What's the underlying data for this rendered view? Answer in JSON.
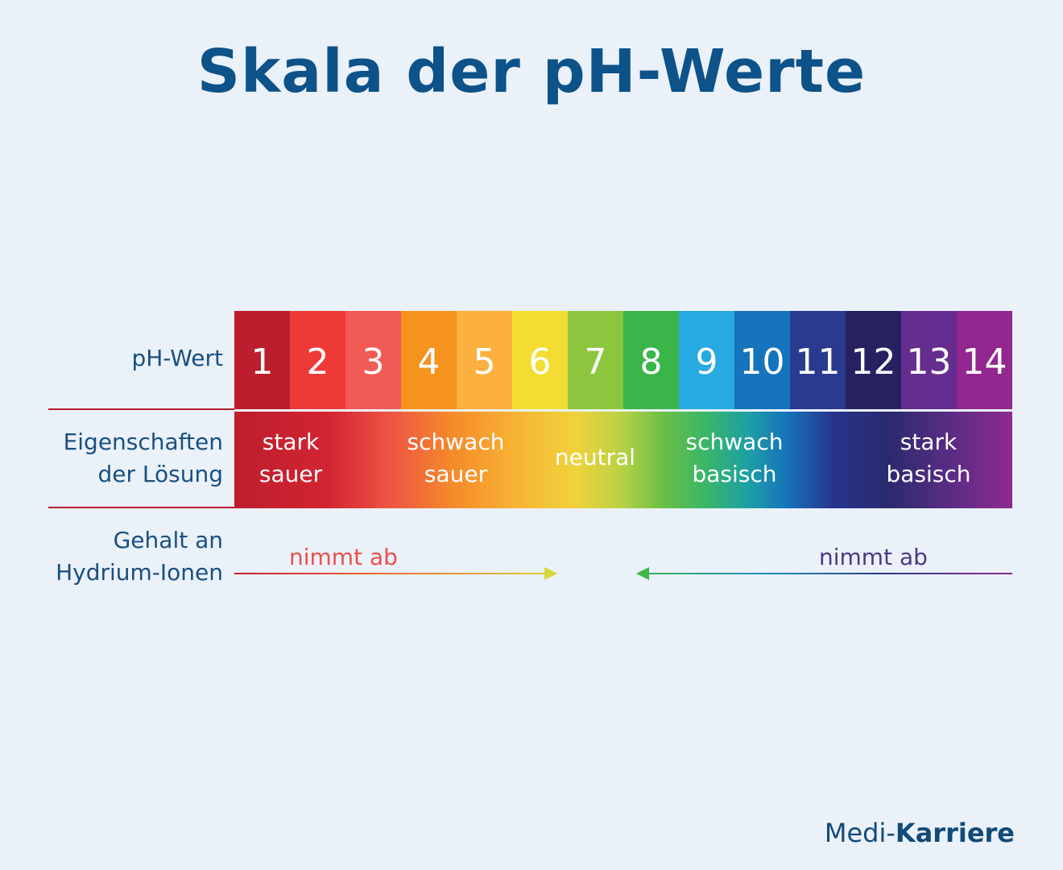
{
  "title": "Skala der pH-Werte",
  "labels": {
    "ph_row": "pH-Wert",
    "properties_line1": "Eigenschaften",
    "properties_line2": "der Lösung",
    "ions_line1": "Gehalt an",
    "ions_line2": "Hydrium-Ionen"
  },
  "scale": [
    {
      "value": "1",
      "color": "#bd1e2d"
    },
    {
      "value": "2",
      "color": "#ee3a37"
    },
    {
      "value": "3",
      "color": "#f15a55"
    },
    {
      "value": "4",
      "color": "#f6921e"
    },
    {
      "value": "5",
      "color": "#fbb040"
    },
    {
      "value": "6",
      "color": "#f4dd33"
    },
    {
      "value": "7",
      "color": "#8cc63f"
    },
    {
      "value": "8",
      "color": "#39b54a"
    },
    {
      "value": "9",
      "color": "#27aae1"
    },
    {
      "value": "10",
      "color": "#1574bb"
    },
    {
      "value": "11",
      "color": "#2a3a8f"
    },
    {
      "value": "12",
      "color": "#262262"
    },
    {
      "value": "13",
      "color": "#652d90"
    },
    {
      "value": "14",
      "color": "#92278f"
    }
  ],
  "properties": {
    "strong_acid_1": "stark",
    "strong_acid_2": "sauer",
    "weak_acid_1": "schwach",
    "weak_acid_2": "sauer",
    "neutral": "neutral",
    "weak_base_1": "schwach",
    "weak_base_2": "basisch",
    "strong_base_1": "stark",
    "strong_base_2": "basisch"
  },
  "ions": {
    "left": "nimmt ab",
    "right": "nimmt ab"
  },
  "colors": {
    "title": "#0d5288",
    "divider": "#b5202e",
    "left_text": "#e9504a",
    "right_text": "#4a3a82"
  },
  "logo": {
    "part1": "Medi-",
    "part2": "Karriere"
  }
}
